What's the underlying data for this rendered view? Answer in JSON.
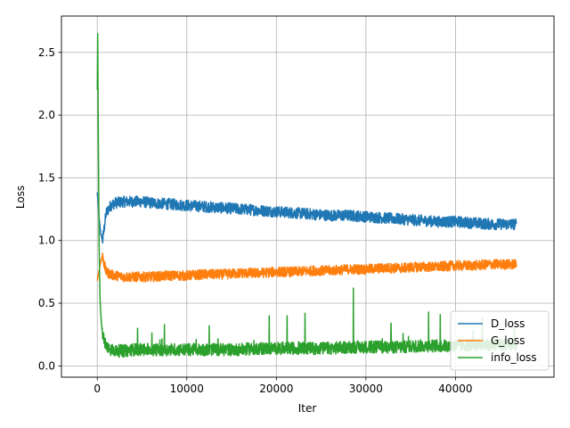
{
  "chart_data": {
    "type": "line",
    "title": "",
    "xlabel": "Iter",
    "ylabel": "Loss",
    "xlim": [
      -4000,
      51000
    ],
    "ylim": [
      -0.09,
      2.79
    ],
    "grid": true,
    "legend_position": "bottom-right",
    "x_ticks": [
      0,
      10000,
      20000,
      30000,
      40000
    ],
    "x_tick_labels": [
      "0",
      "10000",
      "20000",
      "30000",
      "40000"
    ],
    "y_ticks": [
      0.0,
      0.5,
      1.0,
      1.5,
      2.0,
      2.5
    ],
    "y_tick_labels": [
      "0.0",
      "0.5",
      "1.0",
      "1.5",
      "2.0",
      "2.5"
    ],
    "series": [
      {
        "name": "D_loss",
        "color": "#1f77b4",
        "noise": 0.045,
        "x": [
          0,
          100,
          200,
          400,
          600,
          800,
          1000,
          1500,
          2000,
          3000,
          4000,
          5000,
          6000,
          8000,
          10000,
          12000,
          14000,
          16000,
          18000,
          20000,
          22000,
          24000,
          26000,
          28000,
          30000,
          32000,
          34000,
          36000,
          38000,
          40000,
          42000,
          44000,
          46000,
          46800
        ],
        "y": [
          1.38,
          1.3,
          1.18,
          1.05,
          1.0,
          1.12,
          1.22,
          1.28,
          1.3,
          1.31,
          1.31,
          1.31,
          1.3,
          1.29,
          1.28,
          1.27,
          1.26,
          1.25,
          1.24,
          1.23,
          1.22,
          1.21,
          1.2,
          1.2,
          1.19,
          1.18,
          1.17,
          1.16,
          1.15,
          1.15,
          1.14,
          1.13,
          1.13,
          1.13
        ]
      },
      {
        "name": "G_loss",
        "color": "#ff7f0e",
        "noise": 0.04,
        "x": [
          0,
          100,
          200,
          400,
          600,
          800,
          1000,
          1500,
          2000,
          3000,
          4000,
          5000,
          6000,
          8000,
          10000,
          12000,
          14000,
          16000,
          18000,
          20000,
          22000,
          24000,
          26000,
          28000,
          30000,
          32000,
          34000,
          36000,
          38000,
          40000,
          42000,
          44000,
          46000,
          46800
        ],
        "y": [
          0.69,
          0.72,
          0.76,
          0.84,
          0.88,
          0.8,
          0.75,
          0.73,
          0.72,
          0.71,
          0.71,
          0.71,
          0.71,
          0.72,
          0.72,
          0.73,
          0.73,
          0.74,
          0.74,
          0.75,
          0.75,
          0.76,
          0.76,
          0.77,
          0.77,
          0.78,
          0.78,
          0.79,
          0.79,
          0.8,
          0.8,
          0.81,
          0.81,
          0.81
        ]
      },
      {
        "name": "info_loss",
        "color": "#2ca02c",
        "noise": 0.05,
        "x": [
          0,
          50,
          100,
          150,
          200,
          300,
          400,
          500,
          600,
          800,
          1000,
          1500,
          2000,
          3000,
          4000,
          6000,
          8000,
          10000,
          12000,
          14000,
          16000,
          18000,
          20000,
          22000,
          24000,
          26000,
          28000,
          30000,
          32000,
          34000,
          36000,
          38000,
          40000,
          42000,
          44000,
          46000,
          46800
        ],
        "y": [
          2.2,
          2.66,
          2.0,
          1.5,
          1.0,
          0.55,
          0.4,
          0.32,
          0.26,
          0.2,
          0.16,
          0.13,
          0.12,
          0.12,
          0.13,
          0.13,
          0.13,
          0.13,
          0.13,
          0.13,
          0.13,
          0.14,
          0.14,
          0.14,
          0.14,
          0.14,
          0.15,
          0.15,
          0.15,
          0.15,
          0.16,
          0.16,
          0.16,
          0.17,
          0.17,
          0.17,
          0.17
        ],
        "spikes": [
          [
            4500,
            0.3
          ],
          [
            7500,
            0.33
          ],
          [
            12500,
            0.32
          ],
          [
            19200,
            0.4
          ],
          [
            21200,
            0.4
          ],
          [
            23200,
            0.42
          ],
          [
            28600,
            0.62
          ],
          [
            32800,
            0.34
          ],
          [
            37000,
            0.43
          ],
          [
            38300,
            0.41
          ],
          [
            43000,
            0.38
          ]
        ]
      }
    ]
  }
}
